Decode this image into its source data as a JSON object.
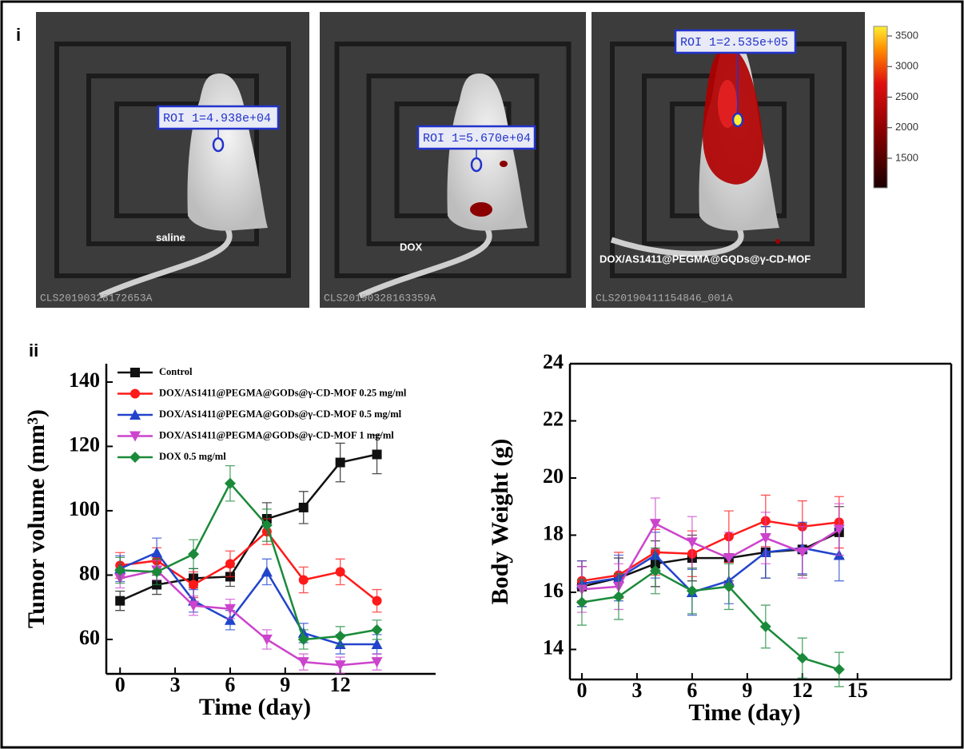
{
  "panel_i": {
    "label": "i",
    "images": [
      {
        "roi": "ROI 1=4.938e+04",
        "group": "saline",
        "file": "CLS20190328172653A"
      },
      {
        "roi": "ROI 1=5.670e+04",
        "group": "DOX",
        "file": "CLS20190328163359A"
      },
      {
        "roi": "ROI 1=2.535e+05",
        "group": "DOX/AS1411@PEGMA@GQDs@γ-CD-MOF",
        "file": "CLS20190411154846_001A"
      }
    ],
    "colorbar": {
      "lim": [
        1016,
        3657
      ],
      "ticks": [
        3500,
        3000,
        2500,
        2000,
        1500
      ]
    }
  },
  "panel_ii": {
    "label": "ii"
  },
  "chart_data": [
    {
      "type": "line",
      "x_label": "Time (day)",
      "y_label": "Tumor volume (mm³)",
      "x": [
        0,
        2,
        4,
        6,
        8,
        10,
        12,
        14
      ],
      "xlim": [
        -0.75,
        17.2
      ],
      "xticks": [
        0,
        3,
        6,
        9,
        12
      ],
      "ylim": [
        49.3,
        145.7
      ],
      "yticks": [
        60,
        80,
        100,
        120,
        140
      ],
      "box": false,
      "legend": "upper left",
      "series": [
        {
          "name": "Control",
          "color": "#111111",
          "marker": "square",
          "values": [
            72,
            77,
            79,
            79.5,
            97.5,
            101,
            115,
            117.5
          ],
          "errors": [
            3,
            3,
            3,
            3,
            5,
            5,
            6,
            6
          ]
        },
        {
          "name": "DOX/AS1411@PEGMA@GODs@γ-CD-MOF 0.25 mg/ml",
          "color": "#ff1a1a",
          "marker": "circle",
          "values": [
            83,
            84.5,
            77,
            83.5,
            93.5,
            78.5,
            81,
            72
          ],
          "errors": [
            4,
            4,
            4,
            4,
            4,
            4,
            4,
            3.5
          ]
        },
        {
          "name": "DOX/AS1411@PEGMA@GODs@γ-CD-MOF 0.5 mg/ml",
          "color": "#2244cc",
          "marker": "triangle-up",
          "values": [
            82,
            87,
            72,
            66,
            81,
            62,
            58.5,
            58.5
          ],
          "errors": [
            4,
            4.5,
            3.5,
            3,
            4,
            3,
            3,
            3
          ]
        },
        {
          "name": "DOX/AS1411@PEGMA@GODs@γ-CD-MOF 1 mg/ml",
          "color": "#cc44cc",
          "marker": "triangle-down",
          "values": [
            79,
            81.5,
            70.5,
            69.5,
            60,
            53,
            52,
            53
          ],
          "errors": [
            3,
            3,
            3,
            3,
            3,
            2.5,
            2.5,
            2.5
          ]
        },
        {
          "name": "DOX 0.5 mg/ml",
          "color": "#1a8a3a",
          "marker": "diamond",
          "values": [
            81.5,
            81,
            86.5,
            108.5,
            95.5,
            60,
            61,
            63
          ],
          "errors": [
            4,
            4,
            4.5,
            5.5,
            5,
            3,
            3,
            3
          ]
        }
      ]
    },
    {
      "type": "line",
      "x_label": "Time (day)",
      "y_label": "Body Weight (g)",
      "x": [
        0,
        2,
        4,
        6,
        8,
        10,
        12,
        14
      ],
      "xlim": [
        -0.65,
        20.1
      ],
      "xticks": [
        0,
        3,
        6,
        9,
        12,
        15
      ],
      "ylim": [
        12.95,
        24
      ],
      "yticks": [
        14,
        16,
        18,
        20,
        22,
        24
      ],
      "box": true,
      "series": [
        {
          "name": "Control",
          "color": "#111111",
          "marker": "square",
          "values": [
            16.2,
            16.5,
            17.0,
            17.2,
            17.2,
            17.4,
            17.5,
            18.1
          ],
          "errors": [
            0.7,
            0.7,
            0.8,
            0.8,
            0.8,
            0.9,
            0.9,
            0.9
          ]
        },
        {
          "name": "DOX/AS1411@PEGMA@GODs@γ-CD-MOF 0.25 mg/ml",
          "color": "#ff1a1a",
          "marker": "circle",
          "values": [
            16.4,
            16.6,
            17.4,
            17.35,
            17.95,
            18.5,
            18.3,
            18.45
          ],
          "errors": [
            0.7,
            0.8,
            0.8,
            0.8,
            0.9,
            0.9,
            0.9,
            0.9
          ]
        },
        {
          "name": "DOX/AS1411@PEGMA@GODs@γ-CD-MOF 0.5 mg/ml",
          "color": "#2244cc",
          "marker": "triangle-up",
          "values": [
            16.3,
            16.5,
            17.3,
            16.0,
            16.4,
            17.4,
            17.55,
            17.3
          ],
          "errors": [
            0.8,
            0.8,
            0.8,
            0.8,
            0.8,
            0.9,
            0.9,
            0.9
          ]
        },
        {
          "name": "DOX/AS1411@PEGMA@GODs@γ-CD-MOF 1 mg/ml",
          "color": "#cc44cc",
          "marker": "triangle-down",
          "values": [
            16.1,
            16.2,
            18.4,
            17.75,
            17.2,
            17.9,
            17.4,
            18.2
          ],
          "errors": [
            0.8,
            0.8,
            0.9,
            0.9,
            0.9,
            0.9,
            0.9,
            0.9
          ]
        },
        {
          "name": "DOX 0.5 mg/ml",
          "color": "#1a8a3a",
          "marker": "diamond",
          "values": [
            15.65,
            15.85,
            16.75,
            16.05,
            16.2,
            14.8,
            13.7,
            13.3
          ],
          "errors": [
            0.8,
            0.8,
            0.8,
            0.8,
            0.8,
            0.75,
            0.7,
            0.6
          ]
        }
      ]
    }
  ]
}
